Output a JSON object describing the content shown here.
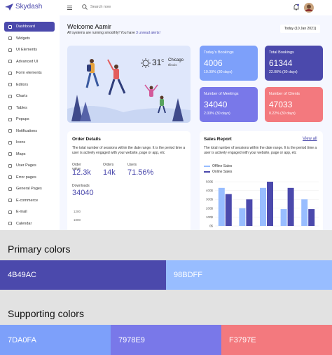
{
  "header": {
    "logo": "Skydash",
    "search": "Search now"
  },
  "sidebar": {
    "items": [
      "Dashboard",
      "Widgets",
      "UI Elements",
      "Advanced UI",
      "Form elements",
      "Editors",
      "Charts",
      "Tables",
      "Popups",
      "Notifications",
      "Icons",
      "Maps",
      "User Pages",
      "Error pages",
      "General Pages",
      "E-commerce",
      "E-mail",
      "Calendar"
    ],
    "active_color": "#4B49AC"
  },
  "welcome": {
    "title": "Welcome Aamir",
    "subtitle": "All systems are running smoothly! You have",
    "alert": "3 unread alerts!",
    "date": "Today (10 Jan 2021)"
  },
  "weather": {
    "temp": "31",
    "unit": "C",
    "city": "Chicago",
    "region": "Illinois"
  },
  "stats": [
    {
      "title": "Today's Bookings",
      "value": "4006",
      "change": "10.00% (30 days)",
      "color": "#7DA0FA"
    },
    {
      "title": "Total Bookings",
      "value": "61344",
      "change": "22.00% (30 days)",
      "color": "#4B49AC"
    },
    {
      "title": "Number of Meetings",
      "value": "34040",
      "change": "2.00% (30 days)",
      "color": "#7978E9"
    },
    {
      "title": "Number of Clients",
      "value": "47033",
      "change": "0.22% (30 days)",
      "color": "#F3797E"
    }
  ],
  "order_details": {
    "title": "Order Details",
    "text": "The total number of sessions within the date range. It is the period time a user is actively engaged with your website, page or app, etc",
    "metrics": [
      {
        "label": "Order value",
        "value": "12.3k"
      },
      {
        "label": "Orders",
        "value": "14k"
      },
      {
        "label": "Users",
        "value": "71.56%"
      }
    ],
    "downloads_label": "Downloads",
    "downloads_value": "34040",
    "chart_ticks": [
      "1200",
      "1000"
    ]
  },
  "sales_report": {
    "title": "Sales Report",
    "link": "View all",
    "text": "The total number of sessions within the date range. It is the period time a user is actively engaged with your website, page or app, etc",
    "chart_data": {
      "type": "bar",
      "ylim": [
        0,
        500
      ],
      "yticks": [
        {
          "value": 0,
          "label": "0$"
        },
        {
          "value": 100,
          "label": "100$"
        },
        {
          "value": 200,
          "label": "200$"
        },
        {
          "value": 300,
          "label": "300$"
        },
        {
          "value": 400,
          "label": "400$"
        },
        {
          "value": 500,
          "label": "500$"
        }
      ],
      "series": [
        {
          "name": "Offline Sales",
          "color": "#98BDFF",
          "values": [
            430,
            200,
            430,
            190,
            300
          ]
        },
        {
          "name": "Online Sales",
          "color": "#4B49AC",
          "values": [
            360,
            300,
            500,
            430,
            190
          ]
        }
      ]
    }
  },
  "palette": {
    "primary_title": "Primary colors",
    "primary": [
      {
        "label": "4B49AC",
        "color": "#4B49AC"
      },
      {
        "label": "98BDFF",
        "color": "#98BDFF"
      }
    ],
    "supporting_title": "Supporting colors",
    "supporting": [
      {
        "label": "7DA0FA",
        "color": "#7DA0FA"
      },
      {
        "label": "7978E9",
        "color": "#7978E9"
      },
      {
        "label": "F3797E",
        "color": "#F3797E"
      }
    ]
  }
}
